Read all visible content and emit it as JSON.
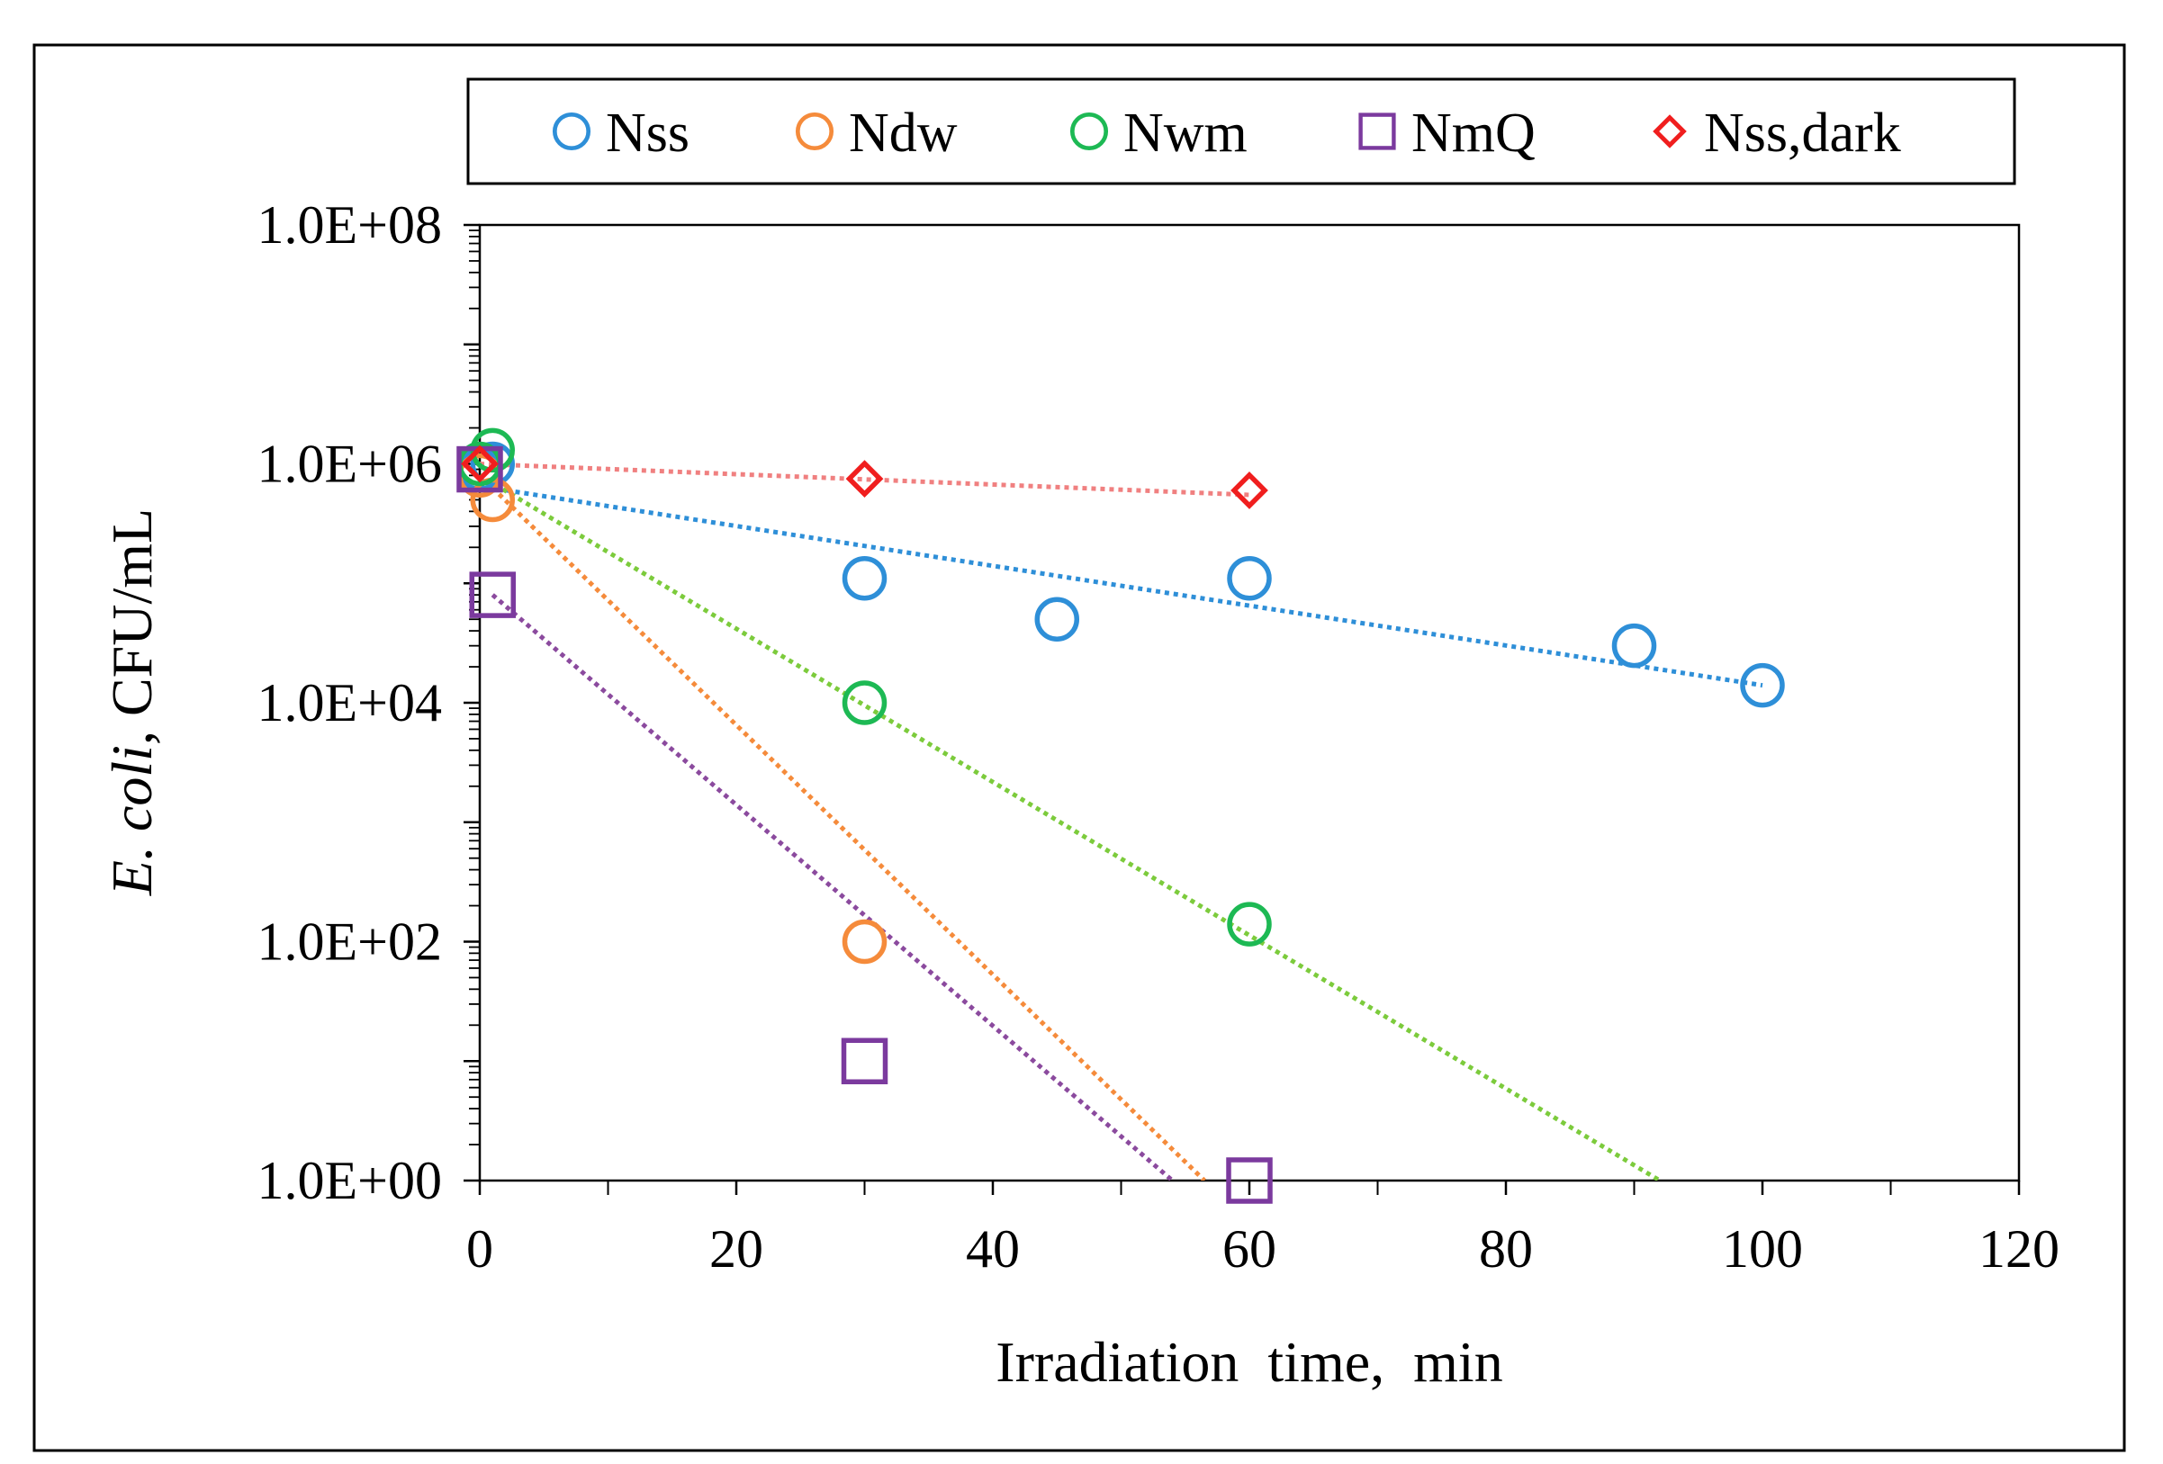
{
  "chart_data": {
    "type": "scatter",
    "xlabel": "Irradiation  time,  min",
    "ylabel_italic": "E. coli",
    "ylabel_rest": ", CFU/mL",
    "xlim": [
      0,
      120
    ],
    "ylim_log10": [
      0,
      8
    ],
    "x_ticks": [
      0,
      20,
      40,
      60,
      80,
      100,
      120
    ],
    "y_ticks": [
      {
        "exp": 0,
        "label": "1.0E+00"
      },
      {
        "exp": 2,
        "label": "1.0E+02"
      },
      {
        "exp": 4,
        "label": "1.0E+04"
      },
      {
        "exp": 6,
        "label": "1.0E+06"
      },
      {
        "exp": 8,
        "label": "1.0E+08"
      }
    ],
    "grid": false,
    "legend_position": "top, outside plot",
    "series": [
      {
        "name": "Nss",
        "marker": "circle",
        "color": "#2E8FD8",
        "trend_color": "#2E8FD8",
        "points": [
          [
            0,
            900000
          ],
          [
            1,
            1000000
          ],
          [
            30,
            110000
          ],
          [
            45,
            50000
          ],
          [
            60,
            110000
          ],
          [
            90,
            30000
          ],
          [
            100,
            14000
          ]
        ],
        "trendline": {
          "x": [
            0,
            100
          ],
          "y": [
            650000,
            14000
          ]
        }
      },
      {
        "name": "Ndw",
        "marker": "circle",
        "color": "#F58B3B",
        "trend_color": "#F58B3B",
        "points": [
          [
            0,
            800000
          ],
          [
            1,
            500000
          ],
          [
            30,
            100
          ]
        ],
        "trendline": {
          "x": [
            0,
            56.5
          ],
          "y": [
            800000,
            1
          ]
        }
      },
      {
        "name": "Nwm",
        "marker": "circle",
        "color": "#1DB954",
        "trend_color": "#7CCB3C",
        "points": [
          [
            0,
            1000000
          ],
          [
            1,
            1300000
          ],
          [
            30,
            10000
          ],
          [
            60,
            140
          ]
        ],
        "trendline": {
          "x": [
            0,
            92
          ],
          "y": [
            800000,
            1
          ]
        }
      },
      {
        "name": "NmQ",
        "marker": "square",
        "color": "#7B3A9E",
        "trend_color": "#8B4A9E",
        "points": [
          [
            0,
            900000
          ],
          [
            1,
            80000
          ],
          [
            30,
            10
          ],
          [
            60,
            1
          ]
        ],
        "trendline": {
          "x": [
            1,
            54
          ],
          "y": [
            80000,
            1
          ]
        }
      },
      {
        "name": "Nss,dark",
        "marker": "diamond",
        "color": "#F01E1E",
        "trend_color": "#F08080",
        "points": [
          [
            0,
            1000000
          ],
          [
            30,
            750000
          ],
          [
            60,
            600000
          ]
        ],
        "trendline": {
          "x": [
            0,
            60
          ],
          "y": [
            1000000,
            550000
          ]
        }
      }
    ]
  }
}
